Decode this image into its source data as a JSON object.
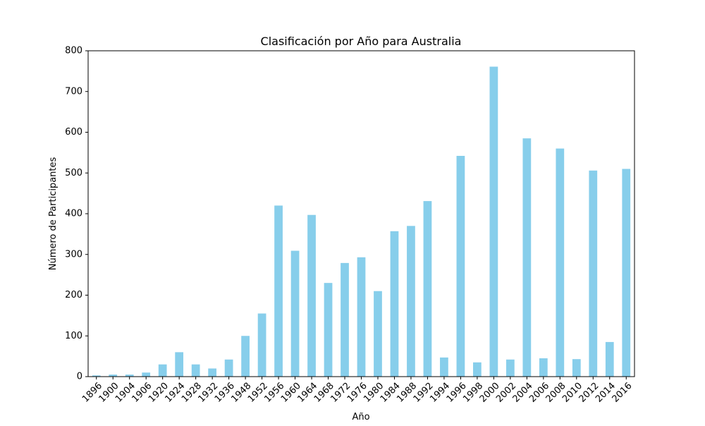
{
  "chart_data": {
    "type": "bar",
    "title": "Clasificación por Año para Australia",
    "xlabel": "Año",
    "ylabel": "Número de Participantes",
    "ylim": [
      0,
      800
    ],
    "yticks": [
      0,
      100,
      200,
      300,
      400,
      500,
      600,
      700,
      800
    ],
    "grid": false,
    "legend": "none",
    "bar_color": "#87ceeb",
    "categories": [
      "1896",
      "1900",
      "1904",
      "1906",
      "1920",
      "1924",
      "1928",
      "1932",
      "1936",
      "1948",
      "1952",
      "1956",
      "1960",
      "1964",
      "1968",
      "1972",
      "1976",
      "1980",
      "1984",
      "1988",
      "1992",
      "1994",
      "1996",
      "1998",
      "2000",
      "2002",
      "2004",
      "2006",
      "2008",
      "2010",
      "2012",
      "2014",
      "2016"
    ],
    "values": [
      3,
      5,
      5,
      10,
      30,
      60,
      30,
      20,
      42,
      100,
      155,
      420,
      309,
      397,
      230,
      279,
      293,
      210,
      357,
      370,
      431,
      47,
      542,
      35,
      761,
      42,
      585,
      45,
      560,
      43,
      506,
      85,
      510
    ]
  }
}
